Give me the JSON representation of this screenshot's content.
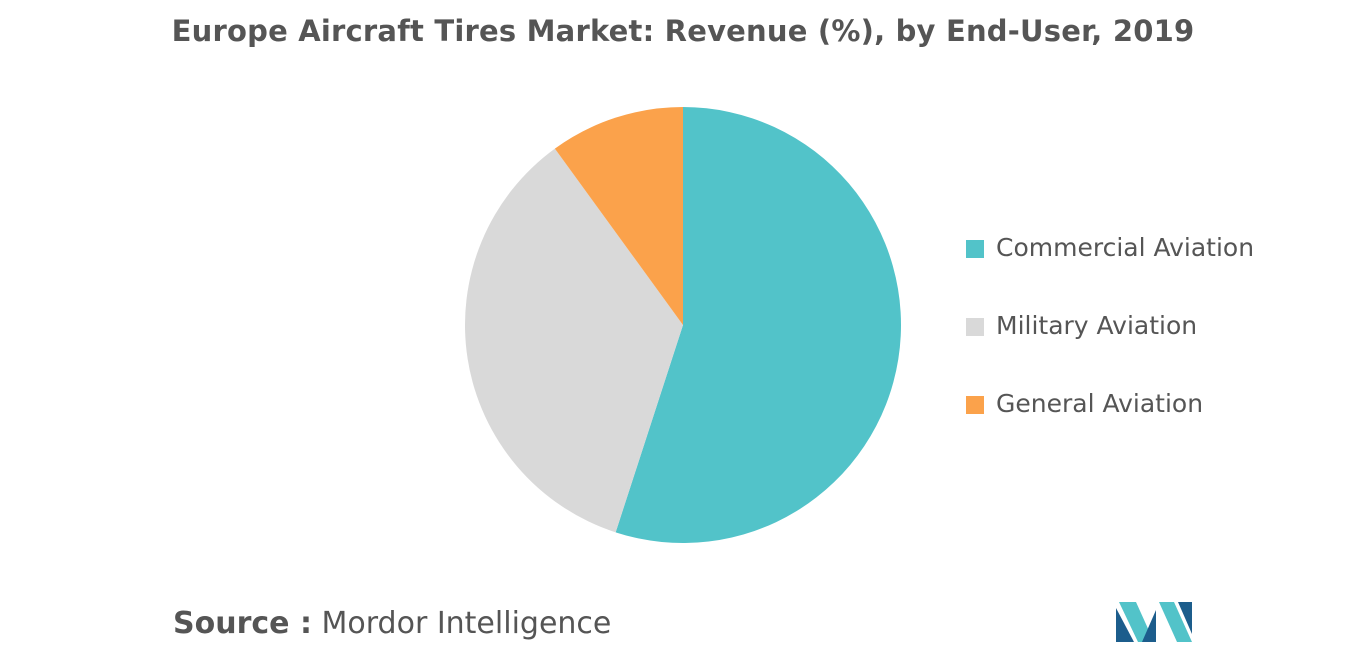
{
  "chart_data": {
    "type": "pie",
    "title": "Europe Aircraft Tires Market: Revenue (%), by End-User, 2019",
    "slices": [
      {
        "label": "Commercial Aviation",
        "value": 55,
        "color": "#52c3c9"
      },
      {
        "label": "Military Aviation",
        "value": 35,
        "color": "#d9d9d9"
      },
      {
        "label": "General Aviation",
        "value": 10,
        "color": "#fba24b"
      }
    ],
    "legend_position": "right"
  },
  "source": {
    "label": "Source :",
    "text": "Mordor Intelligence"
  },
  "logo": {
    "icon": "mordor-intelligence-logo-icon",
    "colors": [
      "#1c5d8c",
      "#52c3c9"
    ]
  }
}
